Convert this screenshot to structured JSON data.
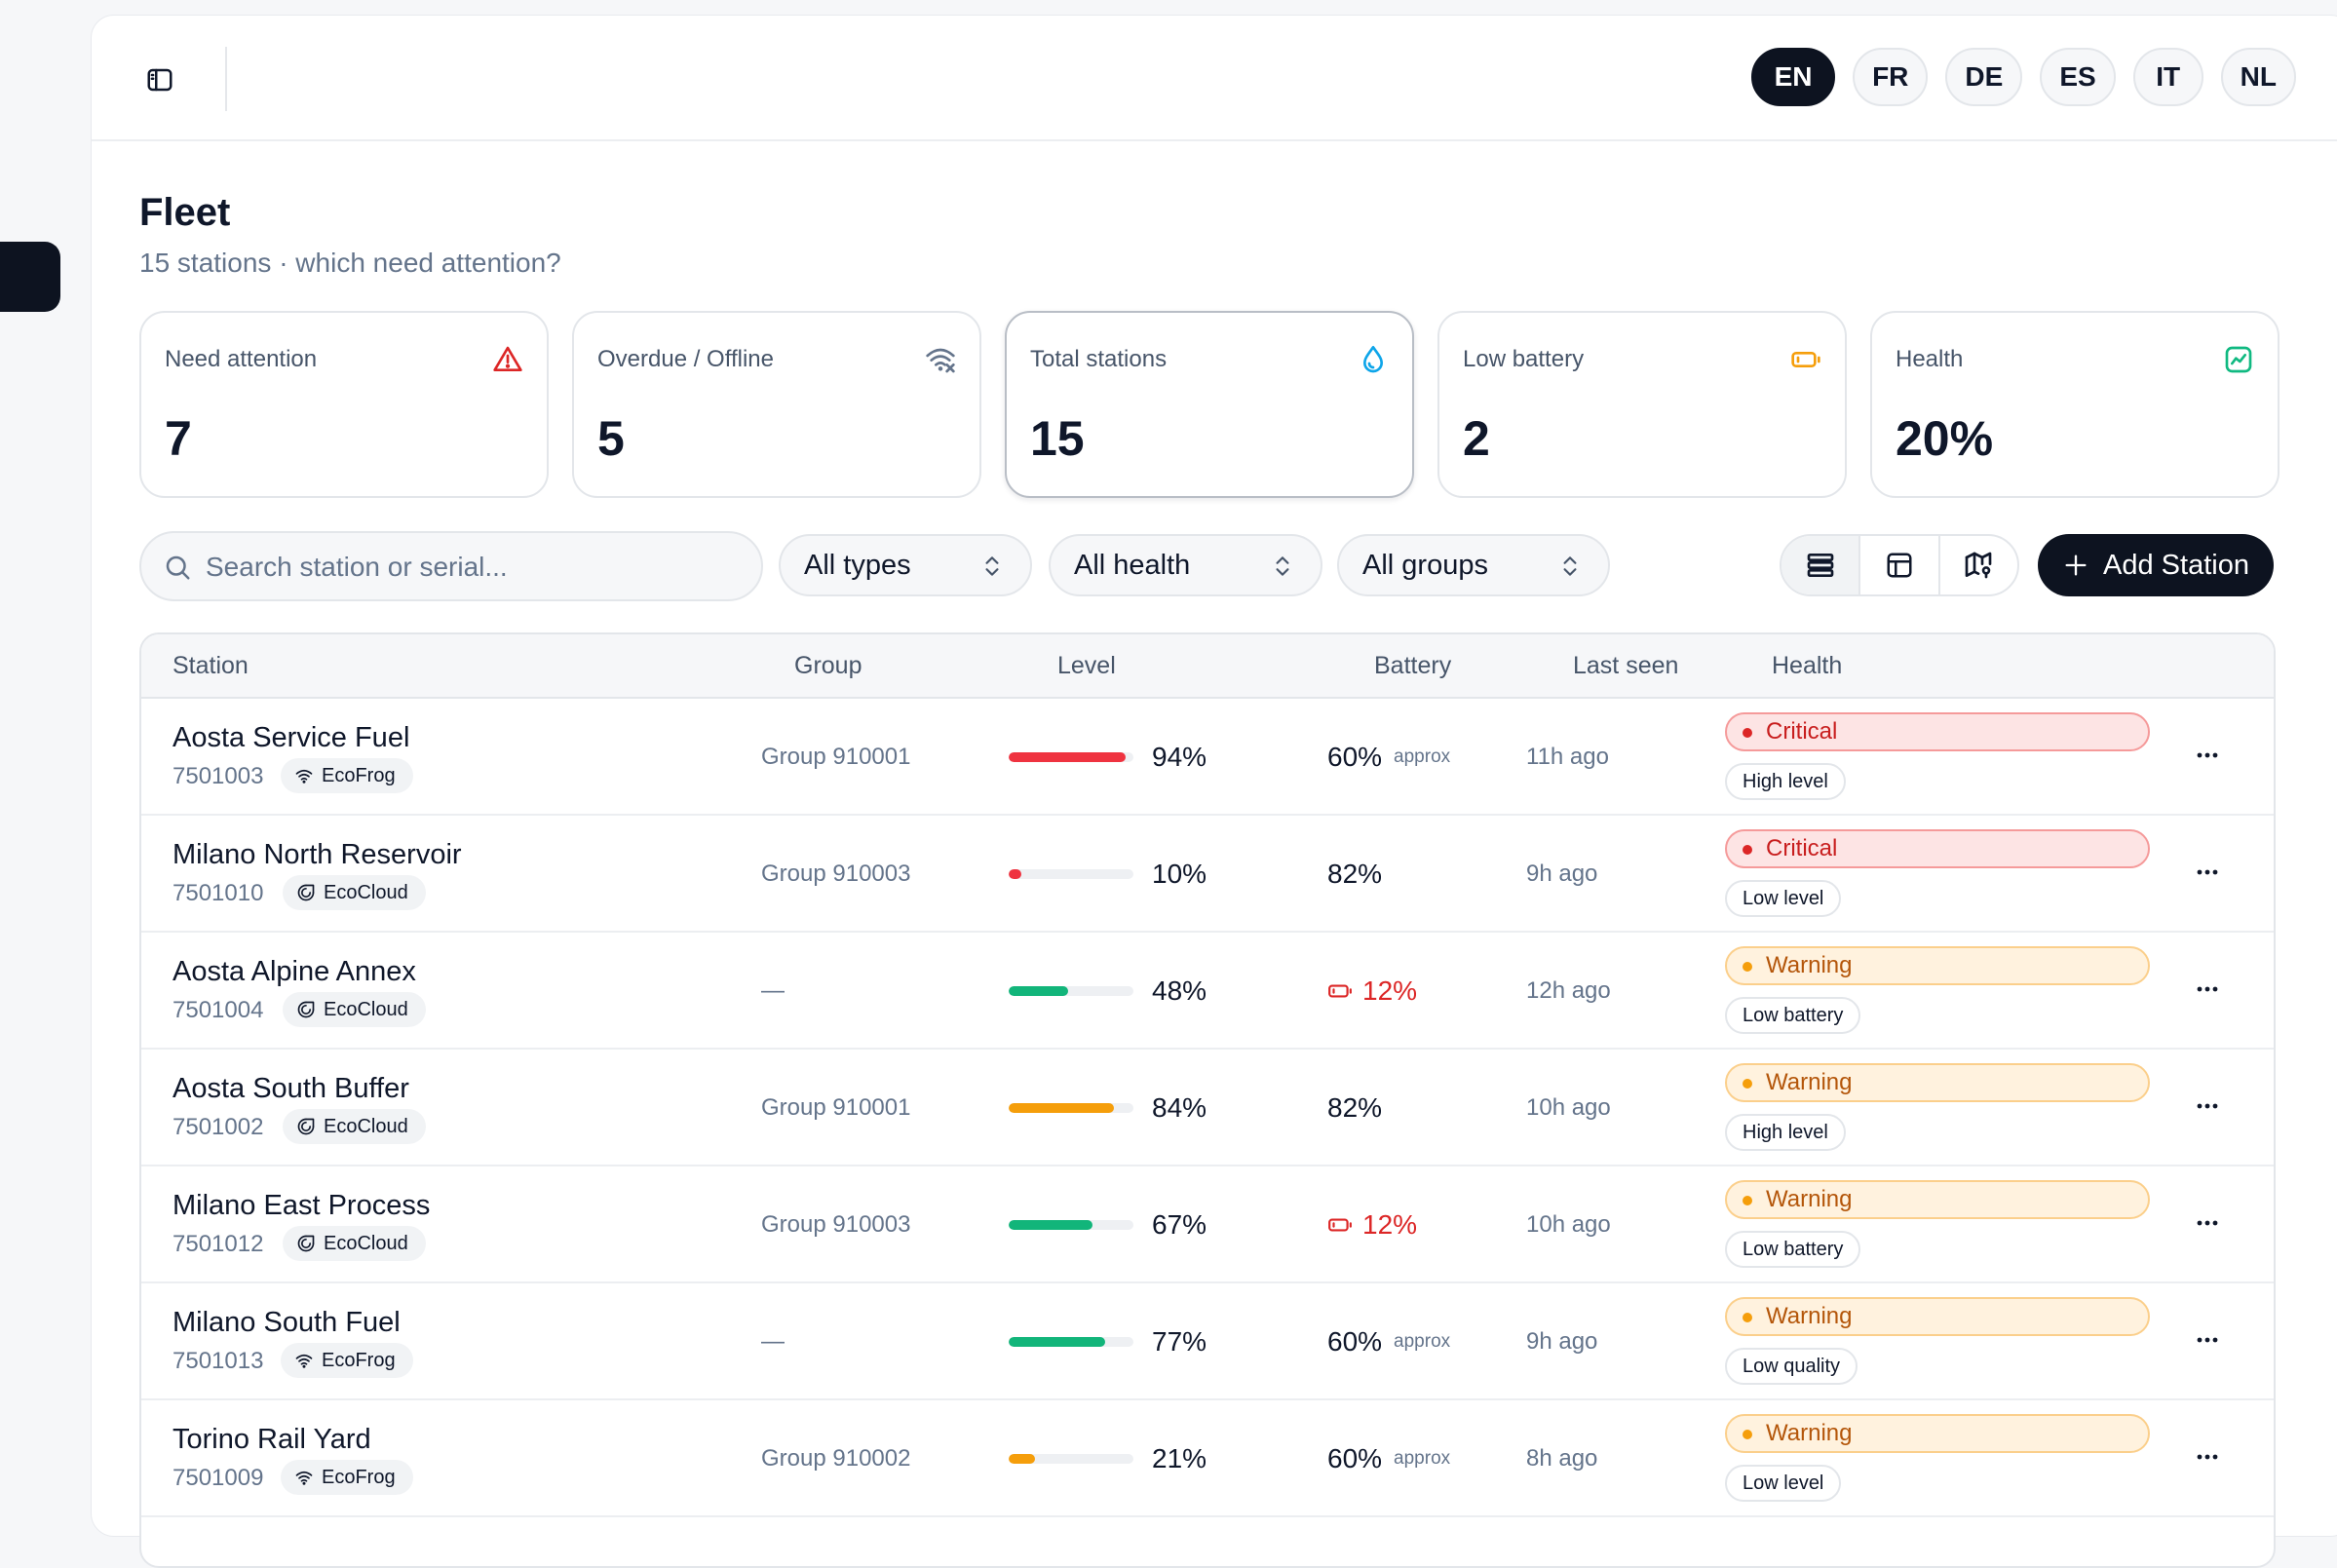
{
  "languages": [
    {
      "code": "EN",
      "active": true
    },
    {
      "code": "FR",
      "active": false
    },
    {
      "code": "DE",
      "active": false
    },
    {
      "code": "ES",
      "active": false
    },
    {
      "code": "IT",
      "active": false
    },
    {
      "code": "NL",
      "active": false
    }
  ],
  "page": {
    "title": "Fleet",
    "subtitle": "15 stations · which need attention?"
  },
  "stats": [
    {
      "label": "Need attention",
      "value": "7",
      "icon": "alert-triangle-icon",
      "color": "#dc2626"
    },
    {
      "label": "Overdue / Offline",
      "value": "5",
      "icon": "wifi-off-icon",
      "color": "#64748b"
    },
    {
      "label": "Total stations",
      "value": "15",
      "icon": "droplet-icon",
      "color": "#0ea5e9"
    },
    {
      "label": "Low battery",
      "value": "2",
      "icon": "battery-low-icon",
      "color": "#f59e0b"
    },
    {
      "label": "Health",
      "value": "20%",
      "icon": "activity-chart-icon",
      "color": "#10b981"
    }
  ],
  "toolbar": {
    "search_placeholder": "Search station or serial...",
    "filters": [
      "All types",
      "All health",
      "All groups"
    ],
    "views": [
      "list-view-icon",
      "table-view-icon",
      "map-view-icon"
    ],
    "add_label": "Add Station"
  },
  "table": {
    "columns": [
      "Station",
      "Group",
      "Level",
      "Battery",
      "Last seen",
      "Health"
    ],
    "rows": [
      {
        "name": "Aosta Service Fuel",
        "serial": "7501003",
        "brand": "EcoFrog",
        "brand_icon": "wifi-icon",
        "group": "Group 910001",
        "level": "94%",
        "level_value": 94,
        "level_color": "#ef3340",
        "battery": "60%",
        "battery_note": "approx",
        "battery_low": false,
        "last_seen": "11h ago",
        "status": "Critical",
        "status_kind": "crit",
        "reason": "High level"
      },
      {
        "name": "Milano North Reservoir",
        "serial": "7501010",
        "brand": "EcoCloud",
        "brand_icon": "cloud-icon",
        "group": "Group 910003",
        "level": "10%",
        "level_value": 10,
        "level_color": "#ef3340",
        "battery": "82%",
        "battery_note": "",
        "battery_low": false,
        "last_seen": "9h ago",
        "status": "Critical",
        "status_kind": "crit",
        "reason": "Low level"
      },
      {
        "name": "Aosta Alpine Annex",
        "serial": "7501004",
        "brand": "EcoCloud",
        "brand_icon": "cloud-icon",
        "group": "—",
        "level": "48%",
        "level_value": 48,
        "level_color": "#12b57a",
        "battery": "12%",
        "battery_note": "",
        "battery_low": true,
        "last_seen": "12h ago",
        "status": "Warning",
        "status_kind": "warn",
        "reason": "Low battery"
      },
      {
        "name": "Aosta South Buffer",
        "serial": "7501002",
        "brand": "EcoCloud",
        "brand_icon": "cloud-icon",
        "group": "Group 910001",
        "level": "84%",
        "level_value": 84,
        "level_color": "#f59e0b",
        "battery": "82%",
        "battery_note": "",
        "battery_low": false,
        "last_seen": "10h ago",
        "status": "Warning",
        "status_kind": "warn",
        "reason": "High level"
      },
      {
        "name": "Milano East Process",
        "serial": "7501012",
        "brand": "EcoCloud",
        "brand_icon": "cloud-icon",
        "group": "Group 910003",
        "level": "67%",
        "level_value": 67,
        "level_color": "#12b57a",
        "battery": "12%",
        "battery_note": "",
        "battery_low": true,
        "last_seen": "10h ago",
        "status": "Warning",
        "status_kind": "warn",
        "reason": "Low battery"
      },
      {
        "name": "Milano South Fuel",
        "serial": "7501013",
        "brand": "EcoFrog",
        "brand_icon": "wifi-icon",
        "group": "—",
        "level": "77%",
        "level_value": 77,
        "level_color": "#12b57a",
        "battery": "60%",
        "battery_note": "approx",
        "battery_low": false,
        "last_seen": "9h ago",
        "status": "Warning",
        "status_kind": "warn",
        "reason": "Low quality"
      },
      {
        "name": "Torino Rail Yard",
        "serial": "7501009",
        "brand": "EcoFrog",
        "brand_icon": "wifi-icon",
        "group": "Group 910002",
        "level": "21%",
        "level_value": 21,
        "level_color": "#f59e0b",
        "battery": "60%",
        "battery_note": "approx",
        "battery_low": false,
        "last_seen": "8h ago",
        "status": "Warning",
        "status_kind": "warn",
        "reason": "Low level"
      }
    ]
  }
}
